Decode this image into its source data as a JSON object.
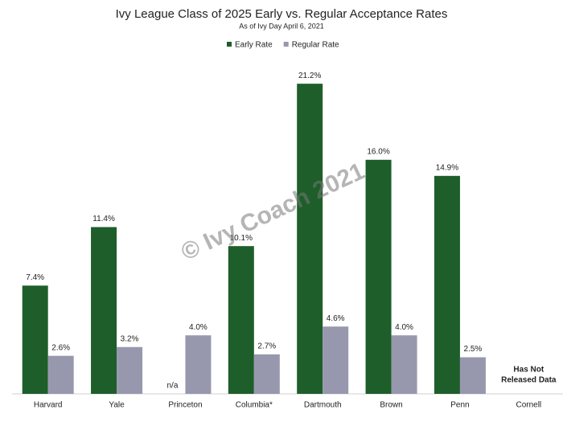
{
  "chart_data": {
    "type": "bar",
    "title": "Ivy League Class of 2025 Early vs. Regular Acceptance Rates",
    "subtitle": "As of Ivy Day April 6, 2021",
    "categories": [
      "Harvard",
      "Yale",
      "Princeton",
      "Columbia*",
      "Dartmouth",
      "Brown",
      "Penn",
      "Cornell"
    ],
    "series": [
      {
        "name": "Early Rate",
        "color": "#1e5e2a",
        "values": [
          7.4,
          11.4,
          null,
          10.1,
          21.2,
          16.0,
          14.9,
          null
        ],
        "value_labels": [
          "7.4%",
          "11.4%",
          "n/a",
          "10.1%",
          "21.2%",
          "16.0%",
          "14.9%",
          null
        ]
      },
      {
        "name": "Regular Rate",
        "color": "#9798ae",
        "values": [
          2.6,
          3.2,
          4.0,
          2.7,
          4.6,
          4.0,
          2.5,
          null
        ],
        "value_labels": [
          "2.6%",
          "3.2%",
          "4.0%",
          "2.7%",
          "4.6%",
          "4.0%",
          "2.5%",
          null
        ]
      }
    ],
    "annotation": [
      "Has Not",
      "Released Data"
    ],
    "watermark": "© Ivy Coach 2021"
  }
}
